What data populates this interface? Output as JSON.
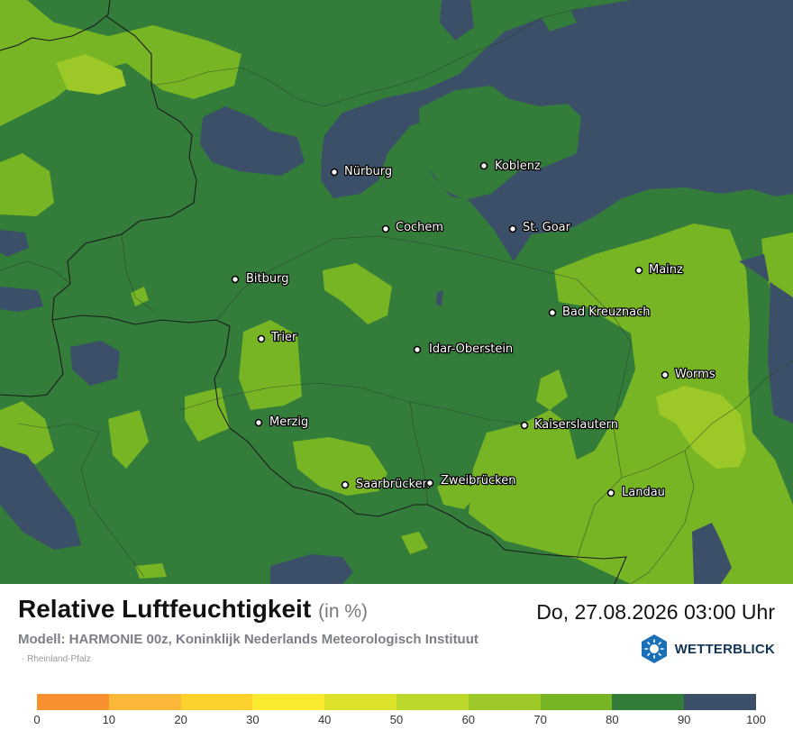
{
  "title": "Relative Luftfeuchtigkeit",
  "unit": "(in %)",
  "datetime": "Do, 27.08.2026 03:00 Uhr",
  "model": "Modell: HARMONIE 00z, Koninklijk Nederlands Meteorologisch Instituut",
  "region": "· Rheinland-Pfalz",
  "brand": "WETTERBLICK",
  "legend": {
    "colors": [
      "#f7902f",
      "#fbb737",
      "#fdd22f",
      "#fbea2f",
      "#dde22a",
      "#bcd82c",
      "#9cc828",
      "#78b525",
      "#337c3a",
      "#3c4f68"
    ],
    "ticks": [
      "0",
      "10",
      "20",
      "30",
      "40",
      "50",
      "60",
      "70",
      "80",
      "90",
      "100"
    ]
  },
  "cities": [
    {
      "name": "Nürburg"
    },
    {
      "name": "Koblenz"
    },
    {
      "name": "Cochem"
    },
    {
      "name": "St. Goar"
    },
    {
      "name": "Mainz"
    },
    {
      "name": "Bitburg"
    },
    {
      "name": "Bad Kreuznach"
    },
    {
      "name": "Trier"
    },
    {
      "name": "Idar-Oberstein"
    },
    {
      "name": "Worms"
    },
    {
      "name": "Merzig"
    },
    {
      "name": "Kaiserslautern"
    },
    {
      "name": "Saarbrücken"
    },
    {
      "name": "Zweibrücken"
    },
    {
      "name": "Landau"
    }
  ]
}
